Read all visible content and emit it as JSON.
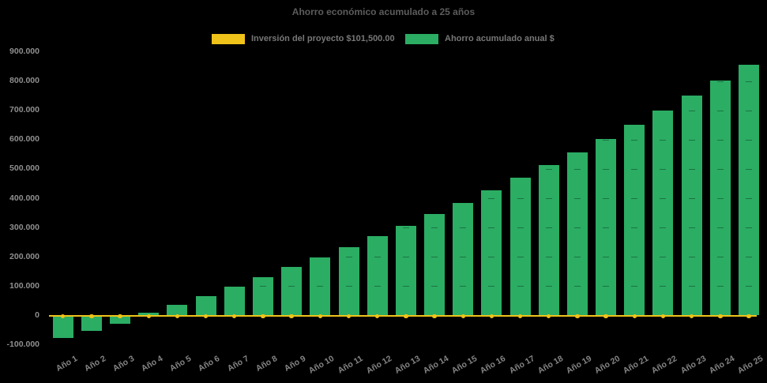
{
  "title": "Ahorro económico acumulado a 25 años",
  "colors": {
    "background": "#000000",
    "bar": "#2BAD63",
    "line": "#EFC319",
    "title_text": "#5C5C5C",
    "legend_text": "#777777",
    "y_axis_text": "#8F8F8F",
    "x_axis_text": "#858585"
  },
  "legend": [
    {
      "label": "Inversión del proyecto $101,500.00",
      "series": "investment",
      "color": "#EFC319"
    },
    {
      "label": "Ahorro acumulado anual $",
      "series": "savings",
      "color": "#2BAD63"
    }
  ],
  "chart_data": {
    "type": "bar",
    "title": "Ahorro económico acumulado a 25 años",
    "categories": [
      "Año 1",
      "Año 2",
      "Año 3",
      "Año 4",
      "Año 5",
      "Año 6",
      "Año 7",
      "Año 8",
      "Año 9",
      "Año 10",
      "Año 11",
      "Año 12",
      "Año 13",
      "Año 14",
      "Año 15",
      "Año 16",
      "Año 17",
      "Año 18",
      "Año 19",
      "Año 20",
      "Año 21",
      "Año 22",
      "Año 23",
      "Año 24",
      "Año 25"
    ],
    "series": [
      {
        "name": "Inversión del proyecto $101,500.00",
        "type": "line",
        "color": "#EFC319",
        "marker": "circle",
        "values": [
          0,
          0,
          0,
          0,
          0,
          0,
          0,
          0,
          0,
          0,
          0,
          0,
          0,
          0,
          0,
          0,
          0,
          0,
          0,
          0,
          0,
          0,
          0,
          0,
          0
        ]
      },
      {
        "name": "Ahorro acumulado anual $",
        "type": "bar",
        "color": "#2BAD63",
        "values": [
          -76500,
          -53000,
          -28500,
          8000,
          35000,
          66000,
          99000,
          131500,
          165000,
          199000,
          232500,
          270500,
          305000,
          346000,
          385000,
          426500,
          470000,
          512500,
          556000,
          602500,
          651500,
          699500,
          751000,
          802500,
          856000
        ]
      }
    ],
    "ylim": [
      -100000,
      900000
    ],
    "ytick_step": 100000,
    "ytick_labels": [
      "-100.000",
      "0",
      "100.000",
      "200.000",
      "300.000",
      "400.000",
      "500.000",
      "600.000",
      "700.000",
      "800.000",
      "900.000"
    ],
    "xtick_rotation_deg": -30,
    "grid": false,
    "legend_position": "top",
    "background": "black"
  }
}
